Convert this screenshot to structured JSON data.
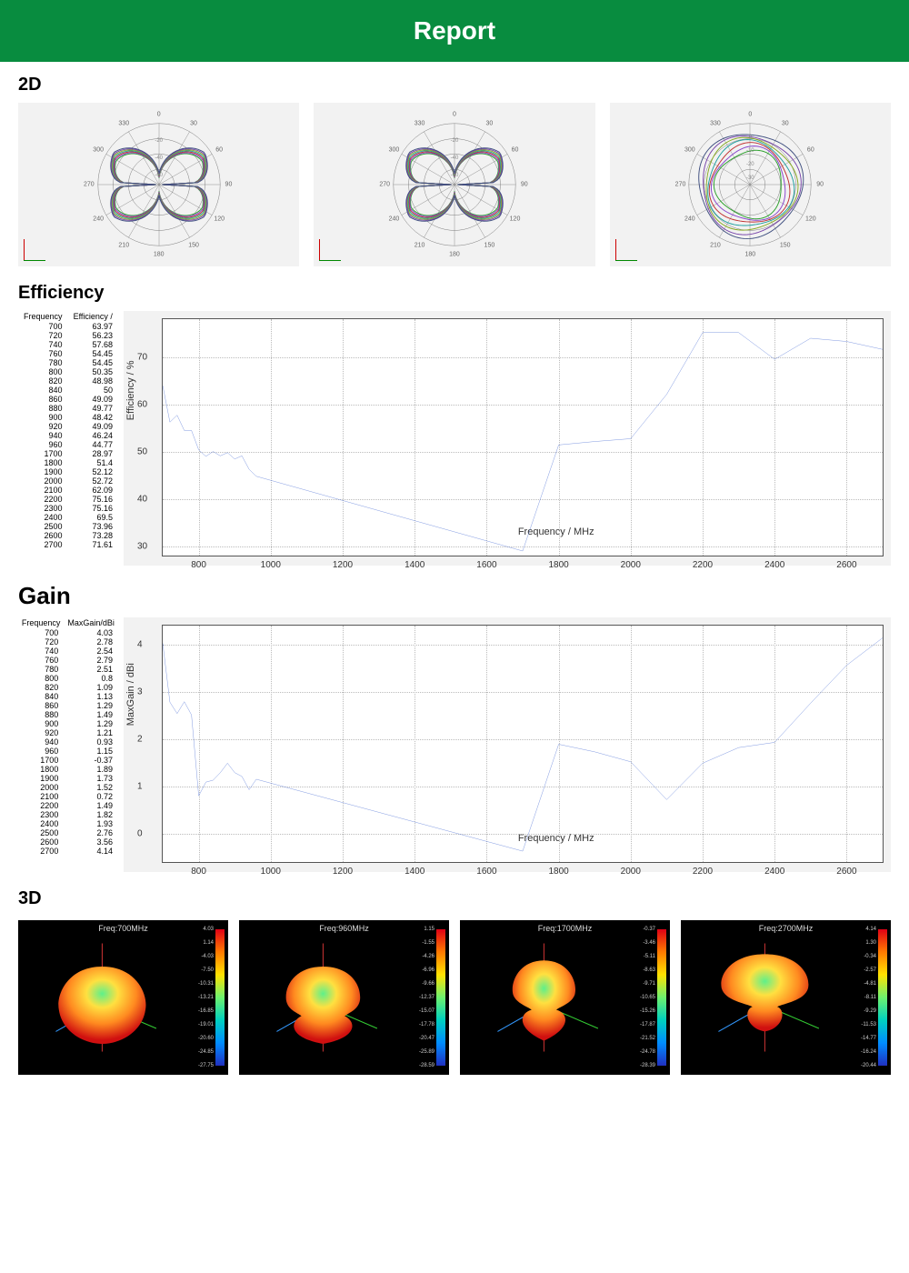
{
  "header": {
    "title": "Report"
  },
  "sections": {
    "twoD": "2D",
    "efficiency": "Efficiency",
    "gain": "Gain",
    "threeD": "3D"
  },
  "polar": {
    "angle_labels": [
      0,
      30,
      60,
      90,
      120,
      150,
      180,
      210,
      240,
      270,
      300,
      330
    ],
    "ring_labels_pattern_a": [
      "-20",
      "-40",
      "-60"
    ],
    "ring_labels_pattern_c": [
      "0",
      "-10",
      "-20",
      "-30"
    ],
    "trace_colors": [
      "#2aa02a",
      "#8844cc",
      "#c03030",
      "#20a0a0",
      "#88aa22",
      "#7744aa",
      "#405080"
    ],
    "background": "#f2f2f2"
  },
  "efficiency": {
    "table_headers": [
      "Frequency",
      "Efficiency /"
    ],
    "rows": [
      [
        700,
        63.97
      ],
      [
        720,
        56.23
      ],
      [
        740,
        57.68
      ],
      [
        760,
        54.45
      ],
      [
        780,
        54.45
      ],
      [
        800,
        50.35
      ],
      [
        820,
        48.98
      ],
      [
        840,
        50
      ],
      [
        860,
        49.09
      ],
      [
        880,
        49.77
      ],
      [
        900,
        48.42
      ],
      [
        920,
        49.09
      ],
      [
        940,
        46.24
      ],
      [
        960,
        44.77
      ],
      [
        1700,
        28.97
      ],
      [
        1800,
        51.4
      ],
      [
        1900,
        52.12
      ],
      [
        2000,
        52.72
      ],
      [
        2100,
        62.09
      ],
      [
        2200,
        75.16
      ],
      [
        2300,
        75.16
      ],
      [
        2400,
        69.5
      ],
      [
        2500,
        73.96
      ],
      [
        2600,
        73.28
      ],
      [
        2700,
        71.61
      ]
    ],
    "chart": {
      "type": "line",
      "x_label": "Frequency / MHz",
      "y_label": "Efficiency / %",
      "xlim": [
        700,
        2700
      ],
      "ylim": [
        28,
        78
      ],
      "xticks": [
        800,
        1000,
        1200,
        1400,
        1600,
        1800,
        2000,
        2200,
        2400,
        2600
      ],
      "yticks": [
        30,
        40,
        50,
        60,
        70
      ],
      "line_color": "#4a6fd4",
      "grid_color": "#bbbbbb",
      "background": "#f2f2f2",
      "frame_color": "#555555"
    }
  },
  "gain": {
    "table_headers": [
      "Frequency",
      "MaxGain/dBi"
    ],
    "rows": [
      [
        700,
        4.03
      ],
      [
        720,
        2.78
      ],
      [
        740,
        2.54
      ],
      [
        760,
        2.79
      ],
      [
        780,
        2.51
      ],
      [
        800,
        0.8
      ],
      [
        820,
        1.09
      ],
      [
        840,
        1.13
      ],
      [
        860,
        1.29
      ],
      [
        880,
        1.49
      ],
      [
        900,
        1.29
      ],
      [
        920,
        1.21
      ],
      [
        940,
        0.93
      ],
      [
        960,
        1.15
      ],
      [
        1700,
        -0.37
      ],
      [
        1800,
        1.89
      ],
      [
        1900,
        1.73
      ],
      [
        2000,
        1.52
      ],
      [
        2100,
        0.72
      ],
      [
        2200,
        1.49
      ],
      [
        2300,
        1.82
      ],
      [
        2400,
        1.93
      ],
      [
        2500,
        2.76
      ],
      [
        2600,
        3.56
      ],
      [
        2700,
        4.14
      ]
    ],
    "chart": {
      "type": "line",
      "x_label": "Frequency / MHz",
      "y_label": "MaxGain / dBi",
      "xlim": [
        700,
        2700
      ],
      "ylim": [
        -0.6,
        4.4
      ],
      "xticks": [
        800,
        1000,
        1200,
        1400,
        1600,
        1800,
        2000,
        2200,
        2400,
        2600
      ],
      "yticks": [
        0,
        1,
        2,
        3,
        4
      ],
      "line_color": "#4a6fd4",
      "grid_color": "#bbbbbb",
      "background": "#f2f2f2",
      "frame_color": "#555555"
    }
  },
  "threeD": {
    "panels": [
      {
        "title": "Freq:700MHz",
        "legend": [
          4.03,
          1.14,
          -4.03,
          -7.5,
          -10.31,
          -13.21,
          -16.85,
          -19.01,
          -20.6,
          -24.85,
          -27.75
        ]
      },
      {
        "title": "Freq:960MHz",
        "legend": [
          1.15,
          -1.55,
          -4.26,
          -6.96,
          -9.66,
          -12.37,
          -15.07,
          -17.78,
          -20.47,
          -25.89,
          -28.59
        ]
      },
      {
        "title": "Freq:1700MHz",
        "legend": [
          -0.37,
          -3.46,
          -5.11,
          -8.63,
          -9.71,
          -10.65,
          -15.26,
          -17.87,
          -21.52,
          -24.78,
          -28.39
        ]
      },
      {
        "title": "Freq:2700MHz",
        "legend": [
          4.14,
          1.3,
          -0.34,
          -2.57,
          -4.81,
          -8.11,
          -9.29,
          -11.53,
          -14.77,
          -16.24,
          -20.44
        ]
      }
    ],
    "gradient_colors": [
      "#e00015",
      "#ff7a00",
      "#ffe100",
      "#6ef26e",
      "#00d0c0",
      "#008cff",
      "#2030c0"
    ],
    "bg": "#000000"
  }
}
